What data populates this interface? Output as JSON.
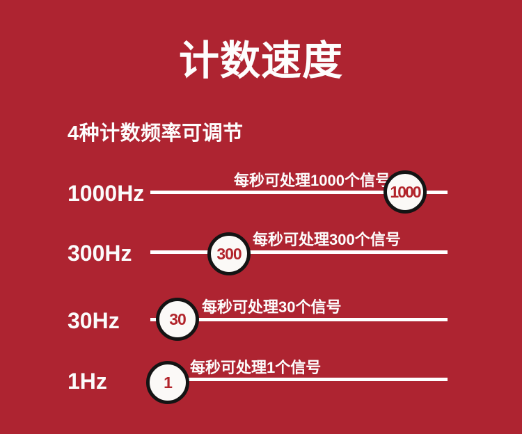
{
  "page": {
    "title": "计数速度",
    "subtitle": "4种计数频率可调节"
  },
  "colors": {
    "background": "#AE2431",
    "text": "#FFFFFF",
    "knob_fill": "#FBF9F7",
    "knob_border": "#141414",
    "knob_number": "#B2242B"
  },
  "rows": [
    {
      "freq": "1000Hz",
      "value": "1000",
      "annotation": "每秒可处理1000个信号"
    },
    {
      "freq": "300Hz",
      "value": "300",
      "annotation": "每秒可处理300个信号"
    },
    {
      "freq": "30Hz",
      "value": "30",
      "annotation": "每秒可处理30个信号"
    },
    {
      "freq": "1Hz",
      "value": "1",
      "annotation": "每秒可处理1个信号"
    }
  ]
}
